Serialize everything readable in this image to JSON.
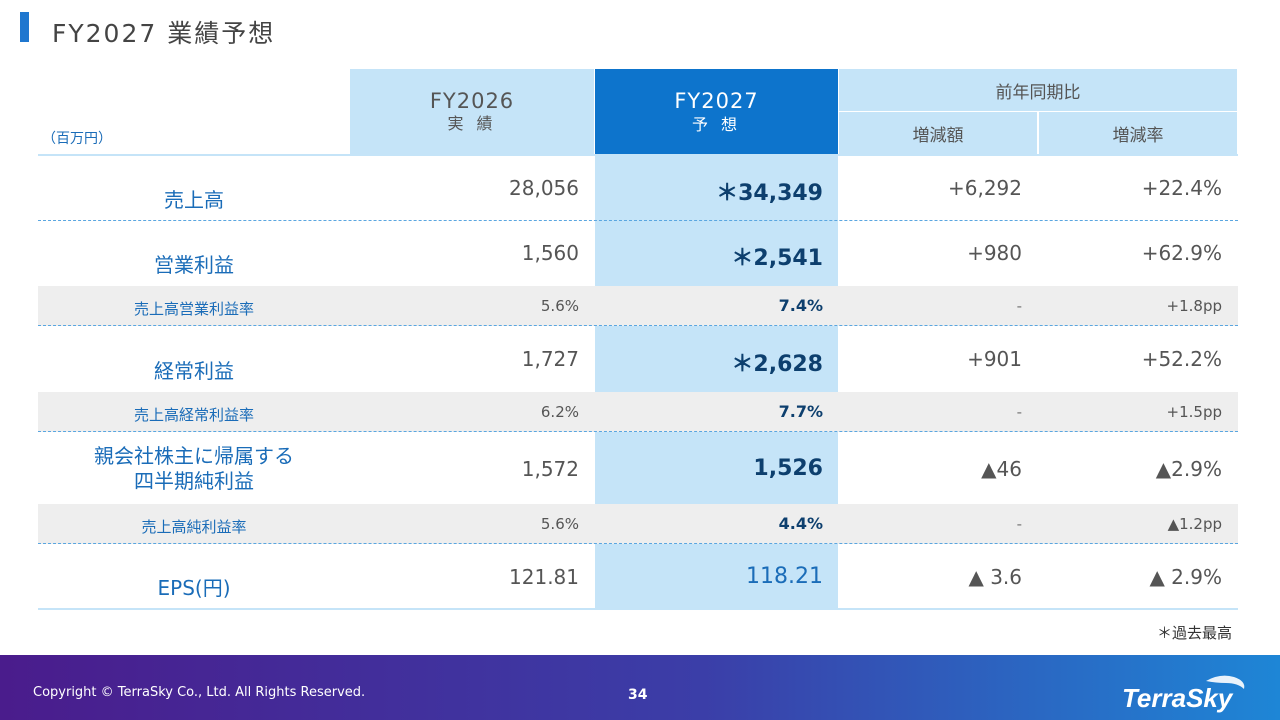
{
  "title": "FY2027 業績予想",
  "unit": "（百万円）",
  "headers": {
    "fy2026_line1": "FY2026",
    "fy2026_line2": "実 績",
    "fy2027_line1": "FY2027",
    "fy2027_line2": "予 想",
    "yoy": "前年同期比",
    "amount": "増減額",
    "rate": "増減率"
  },
  "rows": [
    {
      "label": "売上高",
      "fy2026": "28,056",
      "fy2027": "＊34,349",
      "amount": "+6,292",
      "rate": "+22.4%"
    },
    {
      "label": "営業利益",
      "fy2026": "1,560",
      "fy2027": "＊2,541",
      "amount": "+980",
      "rate": "+62.9%"
    },
    {
      "label": "売上高営業利益率",
      "fy2026": "5.6%",
      "fy2027": "7.4%",
      "amount": "-",
      "rate": "+1.8pp"
    },
    {
      "label": "経常利益",
      "fy2026": "1,727",
      "fy2027": "＊2,628",
      "amount": "+901",
      "rate": "+52.2%"
    },
    {
      "label": "売上高経常利益率",
      "fy2026": "6.2%",
      "fy2027": "7.7%",
      "amount": "-",
      "rate": "+1.5pp"
    },
    {
      "label_line1": "親会社株主に帰属する",
      "label_line2": "四半期純利益",
      "fy2026": "1,572",
      "fy2027": "1,526",
      "amount": "▲46",
      "rate": "▲2.9%"
    },
    {
      "label": "売上高純利益率",
      "fy2026": "5.6%",
      "fy2027": "4.4%",
      "amount": "-",
      "rate": "▲1.2pp"
    },
    {
      "label": "EPS(円)",
      "fy2026": "121.81",
      "fy2027": "118.21",
      "amount": "▲ 3.6",
      "rate": "▲ 2.9%"
    }
  ],
  "note": "＊過去最高",
  "footer": {
    "copyright": "Copyright © TerraSky Co., Ltd. All Rights Reserved.",
    "page": "34",
    "logo": "TerraSky"
  }
}
